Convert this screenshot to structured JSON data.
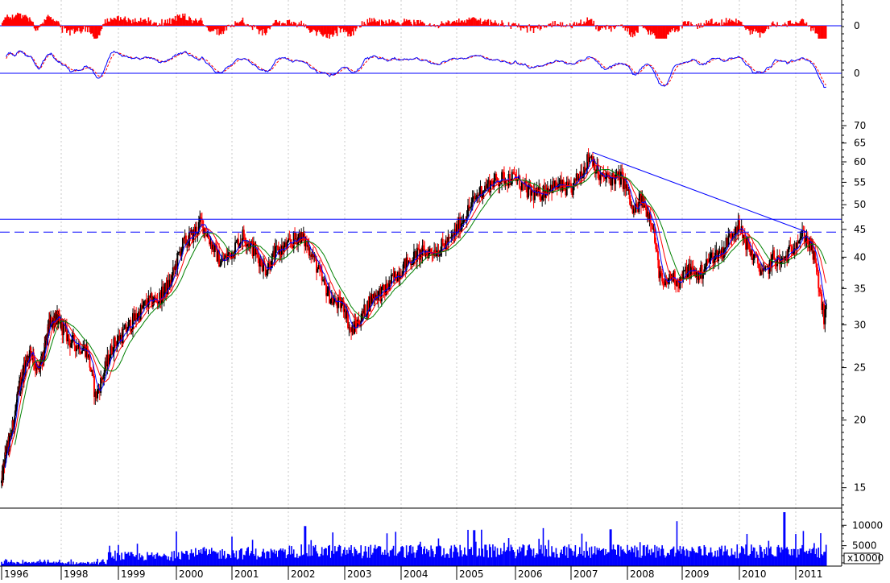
{
  "chart_data": {
    "type": "stock-candlestick",
    "years": [
      "1996",
      "1998",
      "1999",
      "2000",
      "2001",
      "2002",
      "2003",
      "2004",
      "2005",
      "2006",
      "2007",
      "2008",
      "2009",
      "2010",
      "2011"
    ],
    "x_range": [
      1996.0,
      2011.55
    ],
    "price_panel": {
      "scale": "log",
      "ylim": [
        13.8,
        76
      ],
      "ticks": [
        15,
        20,
        25,
        30,
        35,
        40,
        45,
        50,
        55,
        60,
        65,
        70
      ],
      "price_path": [
        [
          1996.0,
          15.3
        ],
        [
          1996.15,
          17.5
        ],
        [
          1996.3,
          18.5
        ],
        [
          1996.45,
          20.5
        ],
        [
          1996.6,
          23
        ],
        [
          1996.8,
          25.5
        ],
        [
          1997.0,
          27
        ],
        [
          1997.2,
          24.5
        ],
        [
          1997.4,
          26
        ],
        [
          1997.6,
          30
        ],
        [
          1997.8,
          31
        ],
        [
          1998.0,
          30
        ],
        [
          1998.15,
          28
        ],
        [
          1998.3,
          27.5
        ],
        [
          1998.45,
          27
        ],
        [
          1998.6,
          22
        ],
        [
          1998.75,
          24.5
        ],
        [
          1998.9,
          27.5
        ],
        [
          1999.1,
          29
        ],
        [
          1999.3,
          31
        ],
        [
          1999.5,
          33
        ],
        [
          1999.7,
          33.5
        ],
        [
          1999.9,
          36
        ],
        [
          2000.1,
          42
        ],
        [
          2000.3,
          44
        ],
        [
          2000.45,
          46.5
        ],
        [
          2000.6,
          43
        ],
        [
          2000.8,
          39
        ],
        [
          2001.0,
          41
        ],
        [
          2001.2,
          44
        ],
        [
          2001.4,
          41
        ],
        [
          2001.6,
          38
        ],
        [
          2001.8,
          41
        ],
        [
          2002.0,
          42
        ],
        [
          2002.2,
          44
        ],
        [
          2002.4,
          41
        ],
        [
          2002.6,
          36
        ],
        [
          2002.8,
          33
        ],
        [
          2003.0,
          32.5
        ],
        [
          2003.1,
          29
        ],
        [
          2003.3,
          31
        ],
        [
          2003.5,
          34
        ],
        [
          2003.7,
          34.5
        ],
        [
          2003.9,
          37
        ],
        [
          2004.1,
          39
        ],
        [
          2004.3,
          40.5
        ],
        [
          2004.5,
          41
        ],
        [
          2004.7,
          41.5
        ],
        [
          2004.9,
          43
        ],
        [
          2005.0,
          45
        ],
        [
          2005.2,
          49
        ],
        [
          2005.4,
          53
        ],
        [
          2005.6,
          55
        ],
        [
          2005.8,
          56
        ],
        [
          2006.0,
          56
        ],
        [
          2006.2,
          53
        ],
        [
          2006.4,
          52
        ],
        [
          2006.6,
          54
        ],
        [
          2006.8,
          54
        ],
        [
          2007.0,
          53
        ],
        [
          2007.2,
          58
        ],
        [
          2007.35,
          62
        ],
        [
          2007.5,
          56
        ],
        [
          2007.7,
          56
        ],
        [
          2007.9,
          56
        ],
        [
          2008.0,
          53
        ],
        [
          2008.1,
          48
        ],
        [
          2008.25,
          51
        ],
        [
          2008.45,
          47
        ],
        [
          2008.55,
          39
        ],
        [
          2008.65,
          35
        ],
        [
          2008.8,
          37
        ],
        [
          2008.95,
          36
        ],
        [
          2009.1,
          38
        ],
        [
          2009.3,
          37
        ],
        [
          2009.5,
          40
        ],
        [
          2009.7,
          41
        ],
        [
          2009.85,
          44
        ],
        [
          2009.95,
          46
        ],
        [
          2010.1,
          43
        ],
        [
          2010.25,
          40
        ],
        [
          2010.45,
          37
        ],
        [
          2010.6,
          40
        ],
        [
          2010.75,
          39
        ],
        [
          2010.9,
          41
        ],
        [
          2011.0,
          43
        ],
        [
          2011.15,
          44
        ],
        [
          2011.3,
          41
        ],
        [
          2011.38,
          37
        ],
        [
          2011.45,
          33
        ],
        [
          2011.5,
          31
        ],
        [
          2011.55,
          32
        ]
      ],
      "overlays": [
        {
          "name": "",
          "color": "#0000ff",
          "lag": 0.12
        },
        {
          "name": "",
          "color": "#ff0000",
          "lag": 0.25
        },
        {
          "name": "",
          "color": "#008000",
          "lag": 0.45
        }
      ],
      "horizontal_lines": [
        {
          "value": 47.0,
          "style": "solid",
          "color": "#0000ff"
        },
        {
          "value": 44.5,
          "style": "dashed",
          "color": "#0000ff"
        }
      ],
      "trendline": {
        "from": [
          2007.38,
          62.5
        ],
        "to": [
          2011.2,
          44.5
        ],
        "color": "#0000ff"
      }
    },
    "histogram_panel": {
      "baseline_label": "0",
      "color": "#ff0000"
    },
    "oscillator_panel": {
      "baseline_label": "0",
      "color": "#0000ff",
      "signal_color": "#ff0000"
    },
    "volume_panel": {
      "ticks": [
        5000,
        10000
      ],
      "ylim": [
        0,
        14000
      ],
      "multiplier_label": "x10000",
      "color": "#0000ff",
      "spikes": [
        [
          2000.0,
          8500
        ],
        [
          2001.0,
          7200
        ],
        [
          2002.3,
          9800
        ],
        [
          2005.3,
          8800
        ],
        [
          2006.5,
          9300
        ],
        [
          2007.7,
          9000
        ],
        [
          2008.9,
          11000
        ],
        [
          2010.8,
          13200
        ]
      ]
    }
  }
}
